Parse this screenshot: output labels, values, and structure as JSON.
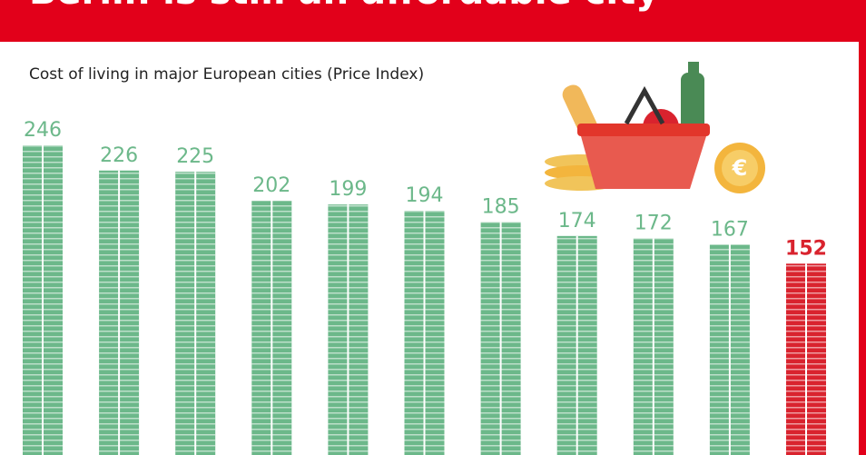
{
  "chart_data": {
    "type": "bar",
    "title": "Berlin is still an affordable city",
    "subtitle": "Cost of living in major European cities (Price Index)",
    "values": [
      246,
      226,
      225,
      202,
      199,
      194,
      185,
      174,
      172,
      167,
      152
    ],
    "colors": [
      "#6cb88a",
      "#6cb88a",
      "#6cb88a",
      "#6cb88a",
      "#6cb88a",
      "#6cb88a",
      "#6cb88a",
      "#6cb88a",
      "#6cb88a",
      "#6cb88a",
      "#d9232e"
    ]
  }
}
